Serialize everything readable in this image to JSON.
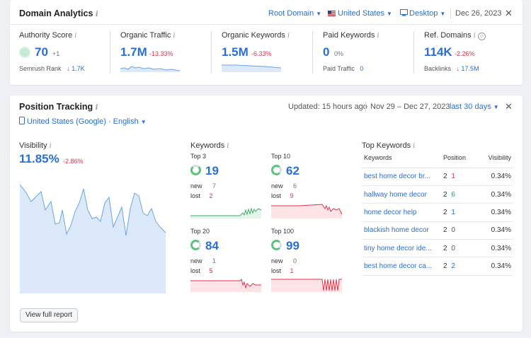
{
  "domain_analytics": {
    "title": "Domain Analytics",
    "root_domain": "Root Domain",
    "country": "United States",
    "device": "Desktop",
    "date": "Dec 26, 2023",
    "metrics": [
      {
        "label": "Authority Score",
        "value": "70",
        "change": "+1",
        "sub_label": "Semrush Rank",
        "sub_value": "1.7K",
        "sub_arrow": "↓"
      },
      {
        "label": "Organic Traffic",
        "value": "1.7M",
        "change": "-13.33%"
      },
      {
        "label": "Organic Keywords",
        "value": "1.5M",
        "change": "-6.33%"
      },
      {
        "label": "Paid Keywords",
        "value": "0",
        "change": "0%",
        "sub_label": "Paid Traffic",
        "sub_value": "0"
      },
      {
        "label": "Ref. Domains",
        "value": "114K",
        "change": "-2.26%",
        "sub_label": "Backlinks",
        "sub_value": "17.5M",
        "sub_arrow": "↓"
      }
    ]
  },
  "position_tracking": {
    "title": "Position Tracking",
    "updated": "Updated: 15 hours ago",
    "range": "Nov 29 – Dec 27, 2023",
    "period": "last 30 days",
    "location": "United States (Google) · English",
    "visibility": {
      "label": "Visibility",
      "value": "11.85%",
      "change": "-2.86%"
    },
    "keywords": {
      "label": "Keywords",
      "groups": [
        {
          "label": "Top 3",
          "value": "19",
          "new_label": "new",
          "new": "7",
          "lost_label": "lost",
          "lost": "2"
        },
        {
          "label": "Top 10",
          "value": "62",
          "new_label": "new",
          "new": "6",
          "lost_label": "lost",
          "lost": "9"
        },
        {
          "label": "Top 20",
          "value": "84",
          "new_label": "new",
          "new": "1",
          "lost_label": "lost",
          "lost": "5"
        },
        {
          "label": "Top 100",
          "value": "99",
          "new_label": "new",
          "new": "0",
          "lost_label": "lost",
          "lost": "1"
        }
      ]
    },
    "top_keywords": {
      "title": "Top Keywords",
      "col_keywords": "Keywords",
      "col_position": "Position",
      "col_visibility": "Visibility",
      "rows": [
        {
          "keyword": "best home decor br...",
          "pos": "2",
          "delta": "1",
          "delta_color": "red",
          "vis": "0.34%"
        },
        {
          "keyword": "hallway home decor",
          "pos": "2",
          "delta": "6",
          "delta_color": "green",
          "vis": "0.34%"
        },
        {
          "keyword": "home decor help",
          "pos": "2",
          "delta": "1",
          "delta_color": "blue",
          "vis": "0.34%"
        },
        {
          "keyword": "blackish home decor",
          "pos": "2",
          "delta": "0",
          "delta_color": "gray",
          "vis": "0.34%"
        },
        {
          "keyword": "tiny home decor ide...",
          "pos": "2",
          "delta": "0",
          "delta_color": "gray",
          "vis": "0.34%"
        },
        {
          "keyword": "best home decor ca...",
          "pos": "2",
          "delta": "2",
          "delta_color": "blue",
          "vis": "0.34%"
        }
      ]
    },
    "view_full_report": "View full report"
  }
}
